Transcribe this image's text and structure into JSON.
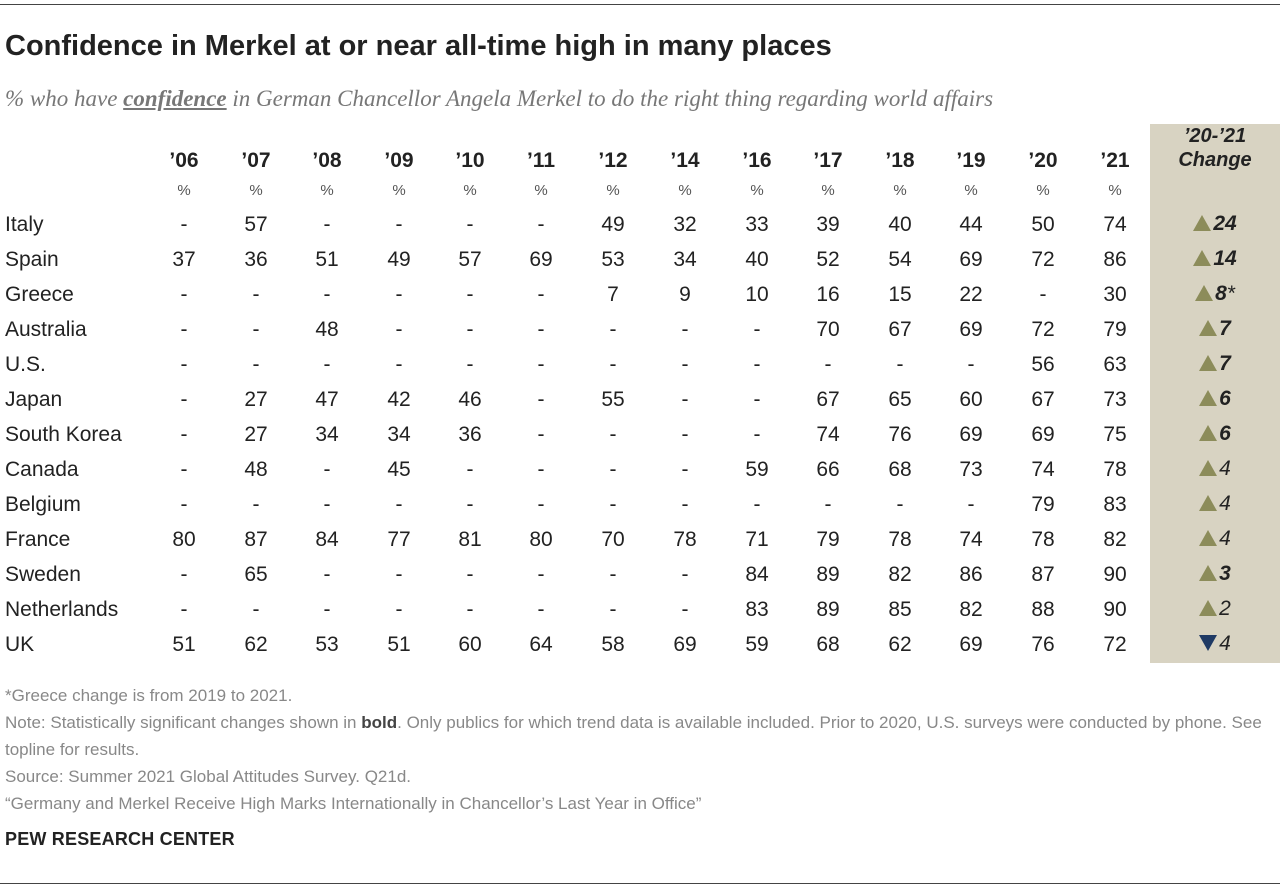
{
  "header": {
    "title": "Confidence in Merkel at or near all-time high in many places",
    "subtitle_pre": "% who have ",
    "subtitle_keyword": "confidence",
    "subtitle_post": " in German Chancellor Angela Merkel to do the right thing regarding world affairs"
  },
  "table": {
    "years": [
      "'06",
      "'07",
      "'08",
      "'09",
      "'10",
      "'11",
      "'12",
      "'14",
      "'16",
      "'17",
      "'18",
      "'19",
      "'20",
      "'21"
    ],
    "unit": "%",
    "change_header_line1": "'20-'21",
    "change_header_line2": "Change",
    "colors": {
      "up_arrow": "#8c8c5a",
      "down_arrow": "#1f3a64",
      "change_column_bg": "#d8d3c2"
    }
  },
  "chart_data": {
    "type": "table",
    "title": "Confidence in Merkel at or near all-time high in many places",
    "columns": [
      "'06",
      "'07",
      "'08",
      "'09",
      "'10",
      "'11",
      "'12",
      "'14",
      "'16",
      "'17",
      "'18",
      "'19",
      "'20",
      "'21"
    ],
    "rows": [
      {
        "country": "Italy",
        "values": [
          "-",
          "57",
          "-",
          "-",
          "-",
          "-",
          "49",
          "32",
          "33",
          "39",
          "40",
          "44",
          "50",
          "74"
        ],
        "change": "24",
        "change_suffix": "",
        "direction": "up",
        "significant": true
      },
      {
        "country": "Spain",
        "values": [
          "37",
          "36",
          "51",
          "49",
          "57",
          "69",
          "53",
          "34",
          "40",
          "52",
          "54",
          "69",
          "72",
          "86"
        ],
        "change": "14",
        "change_suffix": "",
        "direction": "up",
        "significant": true
      },
      {
        "country": "Greece",
        "values": [
          "-",
          "-",
          "-",
          "-",
          "-",
          "-",
          "7",
          "9",
          "10",
          "16",
          "15",
          "22",
          "-",
          "30"
        ],
        "change": "8",
        "change_suffix": "*",
        "direction": "up",
        "significant": true
      },
      {
        "country": "Australia",
        "values": [
          "-",
          "-",
          "48",
          "-",
          "-",
          "-",
          "-",
          "-",
          "-",
          "70",
          "67",
          "69",
          "72",
          "79"
        ],
        "change": "7",
        "change_suffix": "",
        "direction": "up",
        "significant": true
      },
      {
        "country": "U.S.",
        "values": [
          "-",
          "-",
          "-",
          "-",
          "-",
          "-",
          "-",
          "-",
          "-",
          "-",
          "-",
          "-",
          "56",
          "63"
        ],
        "change": "7",
        "change_suffix": "",
        "direction": "up",
        "significant": true
      },
      {
        "country": "Japan",
        "values": [
          "-",
          "27",
          "47",
          "42",
          "46",
          "-",
          "55",
          "-",
          "-",
          "67",
          "65",
          "60",
          "67",
          "73"
        ],
        "change": "6",
        "change_suffix": "",
        "direction": "up",
        "significant": true
      },
      {
        "country": "South Korea",
        "values": [
          "-",
          "27",
          "34",
          "34",
          "36",
          "-",
          "-",
          "-",
          "-",
          "74",
          "76",
          "69",
          "69",
          "75"
        ],
        "change": "6",
        "change_suffix": "",
        "direction": "up",
        "significant": true
      },
      {
        "country": "Canada",
        "values": [
          "-",
          "48",
          "-",
          "45",
          "-",
          "-",
          "-",
          "-",
          "59",
          "66",
          "68",
          "73",
          "74",
          "78"
        ],
        "change": "4",
        "change_suffix": "",
        "direction": "up",
        "significant": false
      },
      {
        "country": "Belgium",
        "values": [
          "-",
          "-",
          "-",
          "-",
          "-",
          "-",
          "-",
          "-",
          "-",
          "-",
          "-",
          "-",
          "79",
          "83"
        ],
        "change": "4",
        "change_suffix": "",
        "direction": "up",
        "significant": false
      },
      {
        "country": "France",
        "values": [
          "80",
          "87",
          "84",
          "77",
          "81",
          "80",
          "70",
          "78",
          "71",
          "79",
          "78",
          "74",
          "78",
          "82"
        ],
        "change": "4",
        "change_suffix": "",
        "direction": "up",
        "significant": false
      },
      {
        "country": "Sweden",
        "values": [
          "-",
          "65",
          "-",
          "-",
          "-",
          "-",
          "-",
          "-",
          "84",
          "89",
          "82",
          "86",
          "87",
          "90"
        ],
        "change": "3",
        "change_suffix": "",
        "direction": "up",
        "significant": true
      },
      {
        "country": "Netherlands",
        "values": [
          "-",
          "-",
          "-",
          "-",
          "-",
          "-",
          "-",
          "-",
          "83",
          "89",
          "85",
          "82",
          "88",
          "90"
        ],
        "change": "2",
        "change_suffix": "",
        "direction": "up",
        "significant": false
      },
      {
        "country": "UK",
        "values": [
          "51",
          "62",
          "53",
          "51",
          "60",
          "64",
          "58",
          "69",
          "59",
          "68",
          "62",
          "69",
          "76",
          "72"
        ],
        "change": "4",
        "change_suffix": "",
        "direction": "down",
        "significant": false
      }
    ]
  },
  "footer": {
    "footnote": "*Greece change is from 2019 to 2021.",
    "note_pre": "Note: Statistically significant changes shown in ",
    "note_bold": "bold",
    "note_post": ". Only publics for which trend data is available included. Prior to 2020, U.S. surveys were conducted by phone. See topline for results.",
    "source": "Source: Summer 2021 Global Attitudes Survey. Q21d.",
    "report": "“Germany and Merkel Receive High Marks Internationally in Chancellor’s Last Year in Office”",
    "brand": "PEW RESEARCH CENTER"
  }
}
